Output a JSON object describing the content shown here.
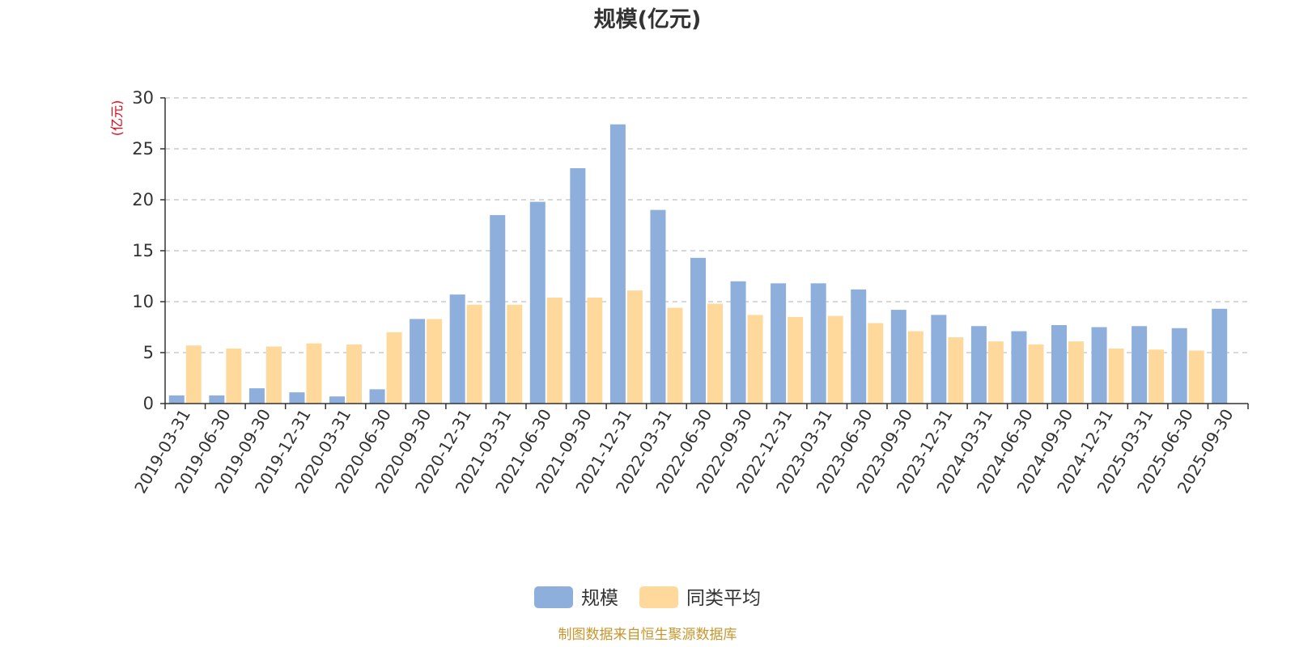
{
  "chart_data": {
    "type": "bar",
    "title": "规模(亿元)",
    "ylabel": "(亿元)",
    "xlabel": "",
    "ylim": [
      0,
      30
    ],
    "yticks": [
      0,
      5,
      10,
      15,
      20,
      25,
      30
    ],
    "grid": true,
    "legend_position": "bottom-center",
    "categories": [
      "2019-03-31",
      "2019-06-30",
      "2019-09-30",
      "2019-12-31",
      "2020-03-31",
      "2020-06-30",
      "2020-09-30",
      "2020-12-31",
      "2021-03-31",
      "2021-06-30",
      "2021-09-30",
      "2021-12-31",
      "2022-03-31",
      "2022-06-30",
      "2022-09-30",
      "2022-12-31",
      "2023-03-31",
      "2023-06-30",
      "2023-09-30",
      "2023-12-31",
      "2024-03-31",
      "2024-06-30",
      "2024-09-30",
      "2024-12-31",
      "2025-03-31",
      "2025-06-30",
      "2025-09-30"
    ],
    "series": [
      {
        "name": "规模",
        "color": "#8eaedb",
        "values": [
          0.8,
          0.8,
          1.5,
          1.1,
          0.7,
          1.4,
          8.3,
          10.7,
          18.5,
          19.8,
          23.1,
          27.4,
          19.0,
          14.3,
          12.0,
          11.8,
          11.8,
          11.2,
          9.2,
          8.7,
          7.6,
          7.1,
          7.7,
          7.5,
          7.6,
          7.4,
          9.3
        ]
      },
      {
        "name": "同类平均",
        "color": "#ffd99b",
        "values": [
          5.7,
          5.4,
          5.6,
          5.9,
          5.8,
          7.0,
          8.3,
          9.7,
          9.7,
          10.4,
          10.4,
          11.1,
          9.4,
          9.8,
          8.7,
          8.5,
          8.6,
          7.9,
          7.1,
          6.5,
          6.1,
          5.8,
          6.1,
          5.4,
          5.3,
          5.2,
          null
        ]
      }
    ]
  },
  "footer": {
    "source_text": "制图数据来自恒生聚源数据库"
  }
}
